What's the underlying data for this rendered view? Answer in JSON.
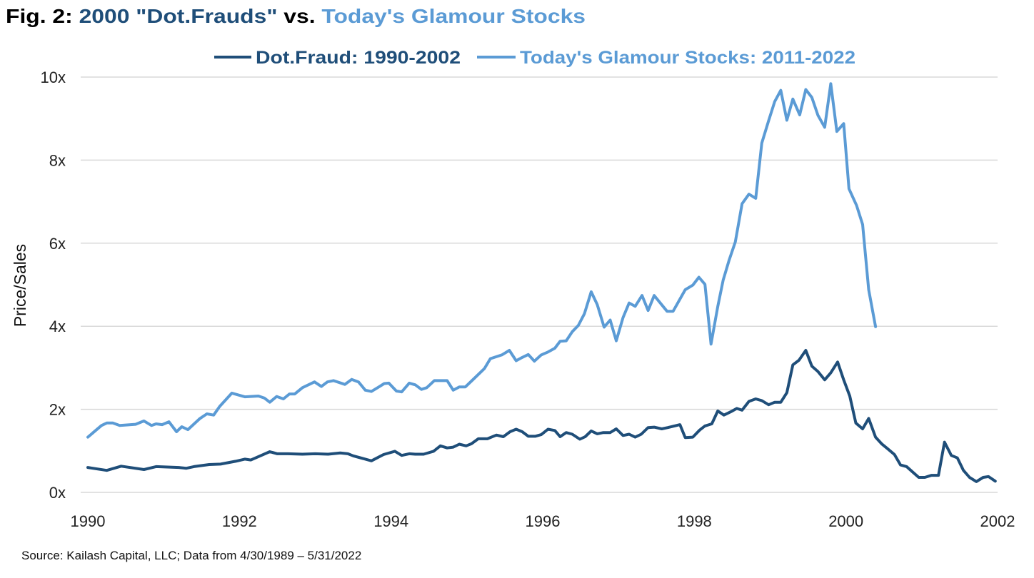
{
  "title": {
    "prefix": "Fig. 2: ",
    "part1": "2000 \"Dot.Frauds\"",
    "middle": " vs. ",
    "part2": "Today's Glamour Stocks"
  },
  "source": "Source: Kailash Capital, LLC; Data from 4/30/1989 – 5/31/2022",
  "colors": {
    "dark": "#1f4e79",
    "light": "#5b9bd5",
    "title": "#000000",
    "grid": "#d9d9d9"
  },
  "chart_data": {
    "type": "line",
    "xlabel": "",
    "ylabel": "Price/Sales",
    "xlim": [
      1990,
      2002
    ],
    "ylim": [
      0,
      10
    ],
    "x_ticks": [
      "1990",
      "1992",
      "1994",
      "1996",
      "1998",
      "2000",
      "2002"
    ],
    "y_ticks": [
      "0x",
      "2x",
      "4x",
      "6x",
      "8x",
      "10x"
    ],
    "grid": "horizontal",
    "legend": "top-center",
    "series": [
      {
        "name": "Dot.Fraud: 1990-2002",
        "color": "#1f4e79",
        "points": [
          [
            1990.0,
            0.6
          ],
          [
            1990.25,
            0.53
          ],
          [
            1990.44,
            0.63
          ],
          [
            1990.74,
            0.55
          ],
          [
            1990.9,
            0.62
          ],
          [
            1991.2,
            0.6
          ],
          [
            1991.3,
            0.58
          ],
          [
            1991.4,
            0.62
          ],
          [
            1991.6,
            0.67
          ],
          [
            1991.75,
            0.68
          ],
          [
            1991.95,
            0.75
          ],
          [
            1992.07,
            0.8
          ],
          [
            1992.15,
            0.78
          ],
          [
            1992.4,
            0.98
          ],
          [
            1992.5,
            0.93
          ],
          [
            1992.64,
            0.93
          ],
          [
            1992.83,
            0.92
          ],
          [
            1993.0,
            0.93
          ],
          [
            1993.17,
            0.92
          ],
          [
            1993.33,
            0.95
          ],
          [
            1993.43,
            0.93
          ],
          [
            1993.5,
            0.88
          ],
          [
            1993.74,
            0.76
          ],
          [
            1993.9,
            0.91
          ],
          [
            1994.05,
            0.99
          ],
          [
            1994.14,
            0.89
          ],
          [
            1994.24,
            0.93
          ],
          [
            1994.32,
            0.92
          ],
          [
            1994.43,
            0.92
          ],
          [
            1994.56,
            0.99
          ],
          [
            1994.65,
            1.12
          ],
          [
            1994.74,
            1.07
          ],
          [
            1994.82,
            1.09
          ],
          [
            1994.9,
            1.16
          ],
          [
            1994.99,
            1.12
          ],
          [
            1995.06,
            1.17
          ],
          [
            1995.15,
            1.29
          ],
          [
            1995.27,
            1.29
          ],
          [
            1995.39,
            1.38
          ],
          [
            1995.48,
            1.34
          ],
          [
            1995.57,
            1.46
          ],
          [
            1995.65,
            1.52
          ],
          [
            1995.73,
            1.46
          ],
          [
            1995.81,
            1.35
          ],
          [
            1995.9,
            1.35
          ],
          [
            1995.98,
            1.39
          ],
          [
            1996.07,
            1.52
          ],
          [
            1996.16,
            1.49
          ],
          [
            1996.23,
            1.34
          ],
          [
            1996.31,
            1.44
          ],
          [
            1996.39,
            1.4
          ],
          [
            1996.49,
            1.28
          ],
          [
            1996.56,
            1.34
          ],
          [
            1996.64,
            1.48
          ],
          [
            1996.72,
            1.41
          ],
          [
            1996.8,
            1.44
          ],
          [
            1996.89,
            1.44
          ],
          [
            1996.97,
            1.53
          ],
          [
            1997.06,
            1.37
          ],
          [
            1997.14,
            1.4
          ],
          [
            1997.22,
            1.33
          ],
          [
            1997.3,
            1.4
          ],
          [
            1997.39,
            1.56
          ],
          [
            1997.47,
            1.57
          ],
          [
            1997.57,
            1.53
          ],
          [
            1997.65,
            1.56
          ],
          [
            1997.81,
            1.63
          ],
          [
            1997.88,
            1.32
          ],
          [
            1997.98,
            1.33
          ],
          [
            1998.07,
            1.5
          ],
          [
            1998.14,
            1.6
          ],
          [
            1998.23,
            1.65
          ],
          [
            1998.31,
            1.96
          ],
          [
            1998.39,
            1.86
          ],
          [
            1998.48,
            1.94
          ],
          [
            1998.56,
            2.02
          ],
          [
            1998.63,
            1.98
          ],
          [
            1998.72,
            2.19
          ],
          [
            1998.81,
            2.25
          ],
          [
            1998.89,
            2.21
          ],
          [
            1998.98,
            2.11
          ],
          [
            1999.06,
            2.17
          ],
          [
            1999.14,
            2.17
          ],
          [
            1999.22,
            2.4
          ],
          [
            1999.3,
            3.07
          ],
          [
            1999.38,
            3.18
          ],
          [
            1999.47,
            3.42
          ],
          [
            1999.55,
            3.04
          ],
          [
            1999.63,
            2.91
          ],
          [
            1999.72,
            2.71
          ],
          [
            1999.8,
            2.88
          ],
          [
            1999.89,
            3.14
          ],
          [
            1999.97,
            2.71
          ],
          [
            2000.05,
            2.32
          ],
          [
            2000.13,
            1.67
          ],
          [
            2000.22,
            1.53
          ],
          [
            2000.3,
            1.78
          ],
          [
            2000.39,
            1.33
          ],
          [
            2000.47,
            1.17
          ],
          [
            2000.55,
            1.05
          ],
          [
            2000.64,
            0.91
          ],
          [
            2000.72,
            0.66
          ],
          [
            2000.8,
            0.62
          ],
          [
            2000.88,
            0.49
          ],
          [
            2000.96,
            0.36
          ],
          [
            2001.04,
            0.36
          ],
          [
            2001.13,
            0.41
          ],
          [
            2001.22,
            0.41
          ],
          [
            2001.3,
            1.21
          ],
          [
            2001.39,
            0.89
          ],
          [
            2001.47,
            0.83
          ],
          [
            2001.55,
            0.53
          ],
          [
            2001.63,
            0.36
          ],
          [
            2001.72,
            0.26
          ],
          [
            2001.81,
            0.36
          ],
          [
            2001.88,
            0.38
          ],
          [
            2001.97,
            0.27
          ]
        ]
      },
      {
        "name": "Today's Glamour Stocks: 2011-2022",
        "color": "#5b9bd5",
        "points": [
          [
            1990.0,
            1.33
          ],
          [
            1990.18,
            1.61
          ],
          [
            1990.25,
            1.67
          ],
          [
            1990.33,
            1.67
          ],
          [
            1990.42,
            1.61
          ],
          [
            1990.63,
            1.64
          ],
          [
            1990.74,
            1.72
          ],
          [
            1990.84,
            1.61
          ],
          [
            1990.9,
            1.65
          ],
          [
            1990.98,
            1.63
          ],
          [
            1991.07,
            1.7
          ],
          [
            1991.17,
            1.46
          ],
          [
            1991.24,
            1.58
          ],
          [
            1991.32,
            1.51
          ],
          [
            1991.48,
            1.78
          ],
          [
            1991.57,
            1.89
          ],
          [
            1991.66,
            1.86
          ],
          [
            1991.74,
            2.07
          ],
          [
            1991.9,
            2.39
          ],
          [
            1992.07,
            2.3
          ],
          [
            1992.25,
            2.32
          ],
          [
            1992.33,
            2.27
          ],
          [
            1992.4,
            2.17
          ],
          [
            1992.49,
            2.31
          ],
          [
            1992.58,
            2.25
          ],
          [
            1992.66,
            2.37
          ],
          [
            1992.73,
            2.37
          ],
          [
            1992.83,
            2.52
          ],
          [
            1992.99,
            2.66
          ],
          [
            1993.08,
            2.55
          ],
          [
            1993.16,
            2.66
          ],
          [
            1993.24,
            2.69
          ],
          [
            1993.39,
            2.6
          ],
          [
            1993.48,
            2.72
          ],
          [
            1993.57,
            2.66
          ],
          [
            1993.66,
            2.46
          ],
          [
            1993.74,
            2.43
          ],
          [
            1993.83,
            2.53
          ],
          [
            1993.91,
            2.62
          ],
          [
            1993.97,
            2.63
          ],
          [
            1994.07,
            2.44
          ],
          [
            1994.14,
            2.42
          ],
          [
            1994.24,
            2.63
          ],
          [
            1994.32,
            2.59
          ],
          [
            1994.4,
            2.48
          ],
          [
            1994.47,
            2.52
          ],
          [
            1994.57,
            2.69
          ],
          [
            1994.74,
            2.69
          ],
          [
            1994.82,
            2.46
          ],
          [
            1994.9,
            2.54
          ],
          [
            1994.98,
            2.54
          ],
          [
            1995.1,
            2.75
          ],
          [
            1995.23,
            2.98
          ],
          [
            1995.31,
            3.22
          ],
          [
            1995.46,
            3.31
          ],
          [
            1995.56,
            3.42
          ],
          [
            1995.65,
            3.17
          ],
          [
            1995.73,
            3.25
          ],
          [
            1995.81,
            3.32
          ],
          [
            1995.89,
            3.16
          ],
          [
            1995.98,
            3.31
          ],
          [
            1996.07,
            3.38
          ],
          [
            1996.16,
            3.47
          ],
          [
            1996.23,
            3.64
          ],
          [
            1996.31,
            3.65
          ],
          [
            1996.39,
            3.87
          ],
          [
            1996.47,
            4.02
          ],
          [
            1996.55,
            4.3
          ],
          [
            1996.64,
            4.83
          ],
          [
            1996.72,
            4.52
          ],
          [
            1996.81,
            3.98
          ],
          [
            1996.89,
            4.15
          ],
          [
            1996.97,
            3.65
          ],
          [
            1997.06,
            4.21
          ],
          [
            1997.14,
            4.56
          ],
          [
            1997.22,
            4.48
          ],
          [
            1997.31,
            4.74
          ],
          [
            1997.39,
            4.38
          ],
          [
            1997.47,
            4.74
          ],
          [
            1997.64,
            4.36
          ],
          [
            1997.72,
            4.36
          ],
          [
            1997.88,
            4.88
          ],
          [
            1997.98,
            4.99
          ],
          [
            1998.06,
            5.18
          ],
          [
            1998.14,
            5.01
          ],
          [
            1998.22,
            3.57
          ],
          [
            1998.31,
            4.48
          ],
          [
            1998.38,
            5.11
          ],
          [
            1998.46,
            5.6
          ],
          [
            1998.54,
            6.03
          ],
          [
            1998.63,
            6.95
          ],
          [
            1998.72,
            7.18
          ],
          [
            1998.81,
            7.08
          ],
          [
            1998.89,
            8.41
          ],
          [
            1998.98,
            8.95
          ],
          [
            1999.06,
            9.41
          ],
          [
            1999.14,
            9.68
          ],
          [
            1999.22,
            8.96
          ],
          [
            1999.3,
            9.47
          ],
          [
            1999.39,
            9.09
          ],
          [
            1999.47,
            9.7
          ],
          [
            1999.55,
            9.51
          ],
          [
            1999.63,
            9.08
          ],
          [
            1999.72,
            8.79
          ],
          [
            1999.8,
            9.84
          ],
          [
            1999.88,
            8.69
          ],
          [
            1999.97,
            8.88
          ],
          [
            2000.04,
            7.31
          ],
          [
            2000.14,
            6.91
          ],
          [
            2000.22,
            6.45
          ],
          [
            2000.3,
            4.88
          ],
          [
            2000.39,
            3.99
          ]
        ]
      }
    ]
  }
}
